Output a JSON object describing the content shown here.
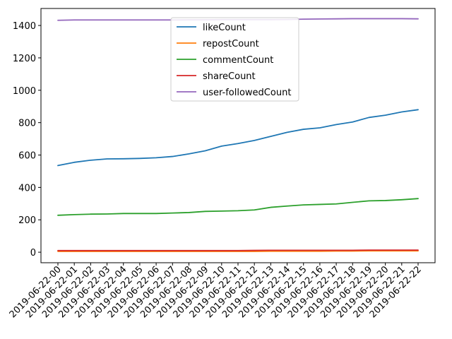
{
  "chart_data": {
    "type": "line",
    "x": [
      "2019-06-22-00",
      "2019-06-22-01",
      "2019-06-22-02",
      "2019-06-22-03",
      "2019-06-22-04",
      "2019-06-22-05",
      "2019-06-22-06",
      "2019-06-22-07",
      "2019-06-22-08",
      "2019-06-22-09",
      "2019-06-22-10",
      "2019-06-22-11",
      "2019-06-22-12",
      "2019-06-22-13",
      "2019-06-22-14",
      "2019-06-22-15",
      "2019-06-22-16",
      "2019-06-22-17",
      "2019-06-22-18",
      "2019-06-22-19",
      "2019-06-22-20",
      "2019-06-22-21",
      "2019-06-22-22"
    ],
    "series": [
      {
        "name": "likeCount",
        "color": "#1f77b4",
        "values": [
          535,
          555,
          568,
          576,
          577,
          579,
          583,
          591,
          607,
          626,
          655,
          671,
          690,
          715,
          740,
          759,
          768,
          788,
          804,
          832,
          846,
          866,
          880
        ]
      },
      {
        "name": "repostCount",
        "color": "#ff7f0e",
        "values": [
          5,
          5,
          5,
          5,
          5,
          5,
          5,
          5,
          5,
          5,
          5,
          5,
          5,
          6,
          6,
          6,
          6,
          7,
          7,
          8,
          8,
          8,
          8
        ]
      },
      {
        "name": "commentCount",
        "color": "#2ca02c",
        "values": [
          228,
          232,
          235,
          236,
          239,
          239,
          239,
          242,
          245,
          252,
          254,
          256,
          261,
          277,
          285,
          292,
          295,
          298,
          308,
          317,
          319,
          324,
          331
        ]
      },
      {
        "name": "shareCount",
        "color": "#d62728",
        "values": [
          10,
          10,
          10,
          10,
          10,
          10,
          10,
          10,
          10,
          10,
          10,
          10,
          11,
          12,
          12,
          12,
          12,
          12,
          12,
          13,
          13,
          13,
          13
        ]
      },
      {
        "name": "user-followedCount",
        "color": "#9467bd",
        "values": [
          1432,
          1434,
          1434,
          1434,
          1434,
          1434,
          1434,
          1434,
          1435,
          1435,
          1436,
          1436,
          1436,
          1436,
          1437,
          1439,
          1440,
          1441,
          1442,
          1442,
          1442,
          1442,
          1441
        ]
      }
    ],
    "yticks": [
      0,
      200,
      400,
      600,
      800,
      1000,
      1200,
      1400
    ],
    "ylim": [
      -65,
      1505
    ],
    "title": "",
    "xlabel": "",
    "ylabel": "",
    "grid": false,
    "legend": "upper center"
  }
}
